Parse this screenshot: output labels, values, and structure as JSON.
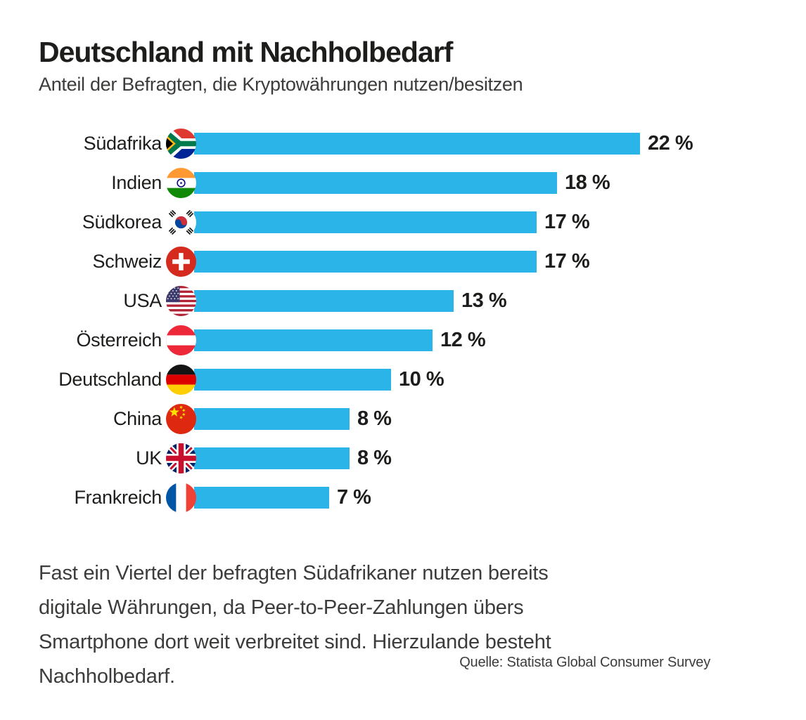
{
  "header": {
    "title": "Deutschland mit Nachholbedarf",
    "subtitle": "Anteil der Befragten, die Kryptowährungen nutzen/besitzen"
  },
  "chart_data": {
    "type": "bar",
    "orientation": "horizontal",
    "title": "Deutschland mit Nachholbedarf",
    "subtitle": "Anteil der Befragten, die Kryptowährungen nutzen/besitzen",
    "unit": "%",
    "xlim": [
      0,
      22
    ],
    "grid": false,
    "legend": false,
    "bar_color": "#2bb4e8",
    "categories": [
      "Südafrika",
      "Indien",
      "Südkorea",
      "Schweiz",
      "USA",
      "Österreich",
      "Deutschland",
      "China",
      "UK",
      "Frankreich"
    ],
    "values": [
      22,
      18,
      17,
      17,
      13,
      12,
      10,
      8,
      8,
      7
    ],
    "rows": [
      {
        "country": "Südafrika",
        "value": 22,
        "value_label": "22 %",
        "flag": "flag-south-africa"
      },
      {
        "country": "Indien",
        "value": 18,
        "value_label": "18 %",
        "flag": "flag-india"
      },
      {
        "country": "Südkorea",
        "value": 17,
        "value_label": "17 %",
        "flag": "flag-south-korea"
      },
      {
        "country": "Schweiz",
        "value": 17,
        "value_label": "17 %",
        "flag": "flag-switzerland"
      },
      {
        "country": "USA",
        "value": 13,
        "value_label": "13 %",
        "flag": "flag-usa"
      },
      {
        "country": "Österreich",
        "value": 12,
        "value_label": "12 %",
        "flag": "flag-austria"
      },
      {
        "country": "Deutschland",
        "value": 10,
        "value_label": "10 %",
        "flag": "flag-germany"
      },
      {
        "country": "China",
        "value": 8,
        "value_label": "8 %",
        "flag": "flag-china"
      },
      {
        "country": "UK",
        "value": 8,
        "value_label": "8 %",
        "flag": "flag-uk"
      },
      {
        "country": "Frankreich",
        "value": 7,
        "value_label": "7 %",
        "flag": "flag-france"
      }
    ]
  },
  "footer": {
    "description_lines": [
      "Fast ein Viertel der befragten Südafrikaner nutzen bereits",
      "digitale Währungen, da Peer-to-Peer-Zahlungen übers",
      "Smartphone dort weit verbreitet sind. Hierzulande besteht",
      "Nachholbedarf."
    ],
    "source": "Quelle: Statista Global Consumer Survey"
  }
}
